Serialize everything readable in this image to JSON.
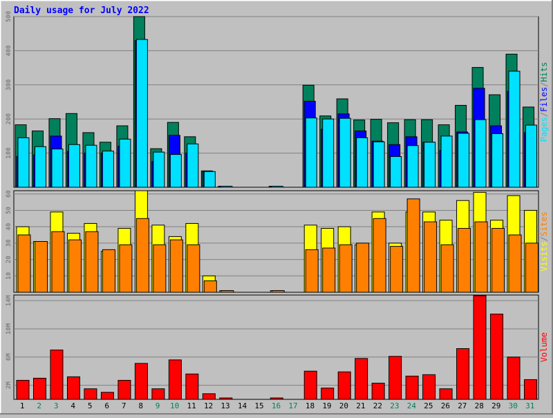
{
  "title": "Daily usage for July 2022",
  "colors": {
    "background": "#c0c0c0",
    "title": "#0000ff",
    "hits": "#00805c",
    "files": "#0000ff",
    "pages": "#00e0ff",
    "visits": "#ffff00",
    "sites": "#ff8000",
    "volume": "#ff0000",
    "weekend_day": "#00805c",
    "weekday_day": "#000000",
    "tick_text": "#808080"
  },
  "chart_data": [
    {
      "type": "bar",
      "name": "hits-files-pages",
      "categories": [
        "1",
        "2",
        "3",
        "4",
        "5",
        "6",
        "7",
        "8",
        "9",
        "10",
        "11",
        "12",
        "13",
        "14",
        "15",
        "16",
        "17",
        "18",
        "19",
        "20",
        "21",
        "22",
        "23",
        "24",
        "25",
        "26",
        "27",
        "28",
        "29",
        "30",
        "31"
      ],
      "weekend_days": [
        "2",
        "3",
        "9",
        "10",
        "16",
        "17",
        "23",
        "24",
        "30",
        "31"
      ],
      "series": [
        {
          "name": "Hits",
          "values": [
            183,
            165,
            201,
            216,
            160,
            132,
            180,
            500,
            113,
            190,
            148,
            48,
            3,
            0,
            0,
            3,
            0,
            299,
            209,
            259,
            197,
            199,
            189,
            198,
            198,
            183,
            240,
            351,
            271,
            390,
            235
          ]
        },
        {
          "name": "Files",
          "values": [
            90,
            95,
            150,
            105,
            100,
            100,
            120,
            430,
            75,
            152,
            100,
            45,
            2,
            0,
            0,
            2,
            0,
            252,
            170,
            215,
            165,
            135,
            125,
            148,
            132,
            108,
            162,
            290,
            180,
            281,
            160
          ]
        },
        {
          "name": "Pages",
          "values": [
            145,
            119,
            112,
            125,
            123,
            106,
            141,
            433,
            103,
            96,
            127,
            46,
            2,
            0,
            0,
            2,
            0,
            203,
            200,
            202,
            145,
            133,
            90,
            122,
            132,
            150,
            158,
            198,
            157,
            340,
            182
          ]
        }
      ],
      "y_ticks": [
        100,
        200,
        300,
        400,
        500
      ],
      "ylim": [
        0,
        500
      ],
      "side_label_parts": [
        {
          "text": "Pages",
          "color_key": "pages"
        },
        {
          "text": "/",
          "color_key": "tick_text"
        },
        {
          "text": "Files",
          "color_key": "files"
        },
        {
          "text": "/",
          "color_key": "tick_text"
        },
        {
          "text": "Hits",
          "color_key": "hits"
        }
      ]
    },
    {
      "type": "bar",
      "name": "visits-sites",
      "series": [
        {
          "name": "Visits",
          "values": [
            40,
            31,
            49,
            36,
            42,
            25,
            39,
            62,
            41,
            34,
            42,
            10,
            1,
            0,
            0,
            1,
            0,
            41,
            39,
            40,
            29,
            49,
            30,
            49,
            49,
            44,
            56,
            61,
            44,
            59,
            50
          ]
        },
        {
          "name": "Sites",
          "values": [
            35,
            31,
            37,
            32,
            37,
            26,
            29,
            45,
            29,
            32,
            29,
            7,
            1,
            0,
            0,
            1,
            0,
            26,
            27,
            29,
            30,
            45,
            28,
            57,
            43,
            29,
            39,
            43,
            39,
            35,
            30
          ]
        }
      ],
      "y_ticks": [
        10,
        20,
        30,
        40,
        50,
        60
      ],
      "ylim": [
        0,
        62
      ],
      "side_label_parts": [
        {
          "text": "Visits",
          "color_key": "visits"
        },
        {
          "text": "/",
          "color_key": "tick_text"
        },
        {
          "text": "Sites",
          "color_key": "sites"
        }
      ]
    },
    {
      "type": "bar",
      "name": "volume",
      "series": [
        {
          "name": "Volume",
          "values": [
            2.7,
            3.0,
            7.0,
            3.2,
            1.5,
            1.0,
            2.7,
            5.1,
            1.5,
            5.6,
            3.6,
            0.8,
            0.2,
            0,
            0,
            0.2,
            0,
            4.0,
            1.6,
            3.9,
            5.8,
            2.3,
            6.1,
            3.3,
            3.5,
            1.5,
            7.2,
            14.7,
            12.1,
            6.0,
            2.8
          ]
        }
      ],
      "y_ticks": [
        2,
        6,
        10,
        14
      ],
      "y_tick_labels": [
        "2M",
        "6M",
        "10M",
        "14M"
      ],
      "ylim": [
        0,
        14.8
      ],
      "side_label_parts": [
        {
          "text": "Volume",
          "color_key": "volume"
        }
      ]
    }
  ]
}
